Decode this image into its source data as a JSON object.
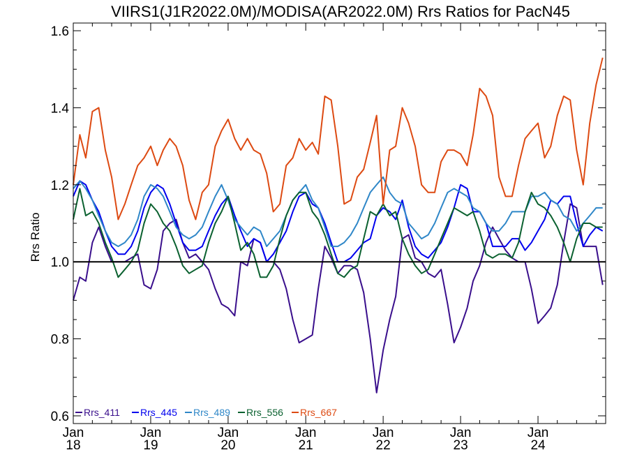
{
  "chart_data": {
    "type": "line",
    "title": "VIIRS1(J1R2022.0M)/MODISA(AR2022.0M)  Rrs Ratios for PacN45",
    "ylabel": "Rrs Ratio",
    "xlabel": "",
    "ylim": [
      0.58,
      1.62
    ],
    "x_range": [
      "2018-01-01",
      "2024-11-15"
    ],
    "y_ticks": [
      "0.6",
      "0.8",
      "1.0",
      "1.2",
      "1.4",
      "1.6"
    ],
    "y_tick_values": [
      0.6,
      0.8,
      1.0,
      1.2,
      1.4,
      1.6
    ],
    "x_ticks": [
      {
        "month": "Jan",
        "year": "18",
        "date": "2018-01-01"
      },
      {
        "month": "Jan",
        "year": "19",
        "date": "2019-01-01"
      },
      {
        "month": "Jan",
        "year": "20",
        "date": "2020-01-01"
      },
      {
        "month": "Jan",
        "year": "21",
        "date": "2021-01-01"
      },
      {
        "month": "Jan",
        "year": "22",
        "date": "2022-01-01"
      },
      {
        "month": "Jan",
        "year": "23",
        "date": "2023-01-01"
      },
      {
        "month": "Jan",
        "year": "24",
        "date": "2024-01-01"
      }
    ],
    "reference_line": 1.0,
    "grid": false,
    "legend_position": "bottom-left",
    "series": [
      {
        "name": "Rrs_411",
        "color": "#3a0f8c",
        "x": [
          "2018-01-01",
          "2018-02-01",
          "2018-03-01",
          "2018-04-01",
          "2018-05-01",
          "2018-06-01",
          "2018-07-01",
          "2018-08-01",
          "2018-09-01",
          "2018-10-01",
          "2018-11-01",
          "2018-12-01",
          "2019-01-01",
          "2019-02-01",
          "2019-03-01",
          "2019-04-01",
          "2019-05-01",
          "2019-06-01",
          "2019-07-01",
          "2019-08-01",
          "2019-09-01",
          "2019-10-01",
          "2019-11-01",
          "2019-12-01",
          "2020-01-01",
          "2020-02-01",
          "2020-03-01",
          "2020-04-01",
          "2020-05-01",
          "2020-06-01",
          "2020-07-01",
          "2020-08-01",
          "2020-09-01",
          "2020-10-01",
          "2020-11-01",
          "2020-12-01",
          "2021-01-01",
          "2021-02-01",
          "2021-03-01",
          "2021-04-01",
          "2021-05-01",
          "2021-06-01",
          "2021-07-01",
          "2021-08-01",
          "2021-09-01",
          "2021-10-01",
          "2021-11-01",
          "2021-12-01",
          "2022-01-01",
          "2022-02-01",
          "2022-03-01",
          "2022-04-01",
          "2022-05-01",
          "2022-06-01",
          "2022-07-01",
          "2022-08-01",
          "2022-09-01",
          "2022-10-01",
          "2022-11-01",
          "2022-12-01",
          "2023-01-01",
          "2023-02-01",
          "2023-03-01",
          "2023-04-01",
          "2023-05-01",
          "2023-06-01",
          "2023-07-01",
          "2023-08-01",
          "2023-09-01",
          "2023-10-01",
          "2023-11-01",
          "2023-12-01",
          "2024-01-01",
          "2024-02-01",
          "2024-03-01",
          "2024-04-01",
          "2024-05-01",
          "2024-06-01",
          "2024-07-01",
          "2024-08-01",
          "2024-09-01",
          "2024-10-01",
          "2024-11-01"
        ],
        "y": [
          0.9,
          0.96,
          0.95,
          1.05,
          1.09,
          1.04,
          1.0,
          1.0,
          1.0,
          1.01,
          1.02,
          0.94,
          0.93,
          0.98,
          1.08,
          1.1,
          1.11,
          1.05,
          1.01,
          1.02,
          1.0,
          0.98,
          0.93,
          0.89,
          0.88,
          0.86,
          1.0,
          0.99,
          1.06,
          1.05,
          1.0,
          1.0,
          0.98,
          0.93,
          0.85,
          0.79,
          0.8,
          0.81,
          0.93,
          1.04,
          1.01,
          0.97,
          0.99,
          0.99,
          0.98,
          0.92,
          0.8,
          0.66,
          0.77,
          0.85,
          0.91,
          1.06,
          1.07,
          1.01,
          1.0,
          0.97,
          0.96,
          0.98,
          0.89,
          0.79,
          0.83,
          0.88,
          0.95,
          0.99,
          1.05,
          1.09,
          1.06,
          1.03,
          1.01,
          1.0,
          1.0,
          0.93,
          0.84,
          0.86,
          0.88,
          0.94,
          1.05,
          1.15,
          1.14,
          1.04,
          1.04,
          1.04,
          0.94
        ]
      },
      {
        "name": "Rrs_445",
        "color": "#0000ee",
        "x": [
          "2018-01-01",
          "2018-02-01",
          "2018-03-01",
          "2018-04-01",
          "2018-05-01",
          "2018-06-01",
          "2018-07-01",
          "2018-08-01",
          "2018-09-01",
          "2018-10-01",
          "2018-11-01",
          "2018-12-01",
          "2019-01-01",
          "2019-02-01",
          "2019-03-01",
          "2019-04-01",
          "2019-05-01",
          "2019-06-01",
          "2019-07-01",
          "2019-08-01",
          "2019-09-01",
          "2019-10-01",
          "2019-11-01",
          "2019-12-01",
          "2020-01-01",
          "2020-02-01",
          "2020-03-01",
          "2020-04-01",
          "2020-05-01",
          "2020-06-01",
          "2020-07-01",
          "2020-08-01",
          "2020-09-01",
          "2020-10-01",
          "2020-11-01",
          "2020-12-01",
          "2021-01-01",
          "2021-02-01",
          "2021-03-01",
          "2021-04-01",
          "2021-05-01",
          "2021-06-01",
          "2021-07-01",
          "2021-08-01",
          "2021-09-01",
          "2021-10-01",
          "2021-11-01",
          "2021-12-01",
          "2022-01-01",
          "2022-02-01",
          "2022-03-01",
          "2022-04-01",
          "2022-05-01",
          "2022-06-01",
          "2022-07-01",
          "2022-08-01",
          "2022-09-01",
          "2022-10-01",
          "2022-11-01",
          "2022-12-01",
          "2023-01-01",
          "2023-02-01",
          "2023-03-01",
          "2023-04-01",
          "2023-05-01",
          "2023-06-01",
          "2023-07-01",
          "2023-08-01",
          "2023-09-01",
          "2023-10-01",
          "2023-11-01",
          "2023-12-01",
          "2024-01-01",
          "2024-02-01",
          "2024-03-01",
          "2024-04-01",
          "2024-05-01",
          "2024-06-01",
          "2024-07-01",
          "2024-08-01",
          "2024-09-01",
          "2024-10-01",
          "2024-11-01"
        ],
        "y": [
          1.17,
          1.21,
          1.2,
          1.16,
          1.13,
          1.08,
          1.04,
          1.02,
          1.02,
          1.04,
          1.08,
          1.14,
          1.18,
          1.2,
          1.19,
          1.15,
          1.1,
          1.05,
          1.03,
          1.03,
          1.04,
          1.08,
          1.12,
          1.15,
          1.17,
          1.12,
          1.08,
          1.04,
          1.06,
          1.05,
          1.0,
          1.02,
          1.05,
          1.08,
          1.13,
          1.17,
          1.18,
          1.15,
          1.14,
          1.1,
          1.05,
          1.0,
          1.0,
          1.01,
          1.03,
          1.05,
          1.06,
          1.12,
          1.14,
          1.13,
          1.11,
          1.16,
          1.09,
          1.04,
          1.02,
          1.01,
          1.03,
          1.05,
          1.09,
          1.14,
          1.2,
          1.19,
          1.13,
          1.13,
          1.1,
          1.04,
          1.04,
          1.04,
          1.06,
          1.06,
          1.03,
          1.05,
          1.08,
          1.11,
          1.16,
          1.15,
          1.17,
          1.17,
          1.1,
          1.04,
          1.07,
          1.09,
          1.08
        ]
      },
      {
        "name": "Rrs_489",
        "color": "#2f87c8",
        "x": [
          "2018-01-01",
          "2018-02-01",
          "2018-03-01",
          "2018-04-01",
          "2018-05-01",
          "2018-06-01",
          "2018-07-01",
          "2018-08-01",
          "2018-09-01",
          "2018-10-01",
          "2018-11-01",
          "2018-12-01",
          "2019-01-01",
          "2019-02-01",
          "2019-03-01",
          "2019-04-01",
          "2019-05-01",
          "2019-06-01",
          "2019-07-01",
          "2019-08-01",
          "2019-09-01",
          "2019-10-01",
          "2019-11-01",
          "2019-12-01",
          "2020-01-01",
          "2020-02-01",
          "2020-03-01",
          "2020-04-01",
          "2020-05-01",
          "2020-06-01",
          "2020-07-01",
          "2020-08-01",
          "2020-09-01",
          "2020-10-01",
          "2020-11-01",
          "2020-12-01",
          "2021-01-01",
          "2021-02-01",
          "2021-03-01",
          "2021-04-01",
          "2021-05-01",
          "2021-06-01",
          "2021-07-01",
          "2021-08-01",
          "2021-09-01",
          "2021-10-01",
          "2021-11-01",
          "2021-12-01",
          "2022-01-01",
          "2022-02-01",
          "2022-03-01",
          "2022-04-01",
          "2022-05-01",
          "2022-06-01",
          "2022-07-01",
          "2022-08-01",
          "2022-09-01",
          "2022-10-01",
          "2022-11-01",
          "2022-12-01",
          "2023-01-01",
          "2023-02-01",
          "2023-03-01",
          "2023-04-01",
          "2023-05-01",
          "2023-06-01",
          "2023-07-01",
          "2023-08-01",
          "2023-09-01",
          "2023-10-01",
          "2023-11-01",
          "2023-12-01",
          "2024-01-01",
          "2024-02-01",
          "2024-03-01",
          "2024-04-01",
          "2024-05-01",
          "2024-06-01",
          "2024-07-01",
          "2024-08-01",
          "2024-09-01",
          "2024-10-01",
          "2024-11-01"
        ],
        "y": [
          1.19,
          1.21,
          1.19,
          1.16,
          1.12,
          1.08,
          1.05,
          1.04,
          1.05,
          1.07,
          1.11,
          1.17,
          1.2,
          1.19,
          1.17,
          1.13,
          1.09,
          1.07,
          1.06,
          1.07,
          1.09,
          1.13,
          1.17,
          1.2,
          1.16,
          1.11,
          1.09,
          1.07,
          1.09,
          1.08,
          1.04,
          1.06,
          1.08,
          1.12,
          1.16,
          1.18,
          1.2,
          1.16,
          1.14,
          1.09,
          1.04,
          1.04,
          1.05,
          1.07,
          1.1,
          1.14,
          1.18,
          1.2,
          1.22,
          1.18,
          1.16,
          1.15,
          1.1,
          1.08,
          1.06,
          1.07,
          1.1,
          1.14,
          1.18,
          1.19,
          1.18,
          1.17,
          1.14,
          1.13,
          1.1,
          1.08,
          1.08,
          1.1,
          1.13,
          1.13,
          1.13,
          1.17,
          1.17,
          1.18,
          1.16,
          1.15,
          1.12,
          1.11,
          1.08,
          1.1,
          1.12,
          1.14,
          1.14
        ]
      },
      {
        "name": "Rrs_556",
        "color": "#0b6130",
        "x": [
          "2018-01-01",
          "2018-02-01",
          "2018-03-01",
          "2018-04-01",
          "2018-05-01",
          "2018-06-01",
          "2018-07-01",
          "2018-08-01",
          "2018-09-01",
          "2018-10-01",
          "2018-11-01",
          "2018-12-01",
          "2019-01-01",
          "2019-02-01",
          "2019-03-01",
          "2019-04-01",
          "2019-05-01",
          "2019-06-01",
          "2019-07-01",
          "2019-08-01",
          "2019-09-01",
          "2019-10-01",
          "2019-11-01",
          "2019-12-01",
          "2020-01-01",
          "2020-02-01",
          "2020-03-01",
          "2020-04-01",
          "2020-05-01",
          "2020-06-01",
          "2020-07-01",
          "2020-08-01",
          "2020-09-01",
          "2020-10-01",
          "2020-11-01",
          "2020-12-01",
          "2021-01-01",
          "2021-02-01",
          "2021-03-01",
          "2021-04-01",
          "2021-05-01",
          "2021-06-01",
          "2021-07-01",
          "2021-08-01",
          "2021-09-01",
          "2021-10-01",
          "2021-11-01",
          "2021-12-01",
          "2022-01-01",
          "2022-02-01",
          "2022-03-01",
          "2022-04-01",
          "2022-05-01",
          "2022-06-01",
          "2022-07-01",
          "2022-08-01",
          "2022-09-01",
          "2022-10-01",
          "2022-11-01",
          "2022-12-01",
          "2023-01-01",
          "2023-02-01",
          "2023-03-01",
          "2023-04-01",
          "2023-05-01",
          "2023-06-01",
          "2023-07-01",
          "2023-08-01",
          "2023-09-01",
          "2023-10-01",
          "2023-11-01",
          "2023-12-01",
          "2024-01-01",
          "2024-02-01",
          "2024-03-01",
          "2024-04-01",
          "2024-05-01",
          "2024-06-01",
          "2024-07-01",
          "2024-08-01",
          "2024-09-01",
          "2024-10-01",
          "2024-11-01"
        ],
        "y": [
          1.11,
          1.19,
          1.12,
          1.13,
          1.1,
          1.05,
          1.01,
          0.96,
          0.98,
          1.0,
          1.03,
          1.1,
          1.15,
          1.13,
          1.1,
          1.08,
          1.04,
          0.99,
          0.97,
          0.98,
          0.99,
          1.05,
          1.1,
          1.13,
          1.17,
          1.1,
          1.03,
          1.05,
          1.02,
          0.96,
          0.96,
          0.99,
          1.06,
          1.12,
          1.16,
          1.18,
          1.18,
          1.13,
          1.11,
          1.07,
          1.02,
          0.97,
          0.96,
          0.98,
          0.99,
          1.06,
          1.13,
          1.12,
          1.15,
          1.12,
          1.13,
          1.06,
          1.02,
          0.99,
          0.97,
          0.98,
          1.02,
          1.06,
          1.1,
          1.14,
          1.13,
          1.12,
          1.13,
          1.08,
          1.02,
          1.01,
          1.02,
          1.02,
          1.01,
          1.05,
          1.13,
          1.18,
          1.15,
          1.14,
          1.12,
          1.09,
          1.05,
          1.0,
          1.06,
          1.1,
          1.1,
          1.09,
          1.09
        ]
      },
      {
        "name": "Rrs_667",
        "color": "#dd4a12",
        "x": [
          "2018-01-01",
          "2018-02-01",
          "2018-03-01",
          "2018-04-01",
          "2018-05-01",
          "2018-06-01",
          "2018-07-01",
          "2018-08-01",
          "2018-09-01",
          "2018-10-01",
          "2018-11-01",
          "2018-12-01",
          "2019-01-01",
          "2019-02-01",
          "2019-03-01",
          "2019-04-01",
          "2019-05-01",
          "2019-06-01",
          "2019-07-01",
          "2019-08-01",
          "2019-09-01",
          "2019-10-01",
          "2019-11-01",
          "2019-12-01",
          "2020-01-01",
          "2020-02-01",
          "2020-03-01",
          "2020-04-01",
          "2020-05-01",
          "2020-06-01",
          "2020-07-01",
          "2020-08-01",
          "2020-09-01",
          "2020-10-01",
          "2020-11-01",
          "2020-12-01",
          "2021-01-01",
          "2021-02-01",
          "2021-03-01",
          "2021-04-01",
          "2021-05-01",
          "2021-06-01",
          "2021-07-01",
          "2021-08-01",
          "2021-09-01",
          "2021-10-01",
          "2021-11-01",
          "2021-12-01",
          "2022-01-01",
          "2022-02-01",
          "2022-03-01",
          "2022-04-01",
          "2022-05-01",
          "2022-06-01",
          "2022-07-01",
          "2022-08-01",
          "2022-09-01",
          "2022-10-01",
          "2022-11-01",
          "2022-12-01",
          "2023-01-01",
          "2023-02-01",
          "2023-03-01",
          "2023-04-01",
          "2023-05-01",
          "2023-06-01",
          "2023-07-01",
          "2023-08-01",
          "2023-09-01",
          "2023-10-01",
          "2023-11-01",
          "2023-12-01",
          "2024-01-01",
          "2024-02-01",
          "2024-03-01",
          "2024-04-01",
          "2024-05-01",
          "2024-06-01",
          "2024-07-01",
          "2024-08-01",
          "2024-09-01",
          "2024-10-01",
          "2024-11-01"
        ],
        "y": [
          1.2,
          1.33,
          1.27,
          1.39,
          1.4,
          1.29,
          1.22,
          1.11,
          1.15,
          1.2,
          1.25,
          1.27,
          1.3,
          1.25,
          1.29,
          1.32,
          1.3,
          1.25,
          1.16,
          1.11,
          1.18,
          1.2,
          1.3,
          1.34,
          1.37,
          1.32,
          1.29,
          1.32,
          1.29,
          1.28,
          1.23,
          1.13,
          1.15,
          1.25,
          1.27,
          1.32,
          1.29,
          1.31,
          1.28,
          1.43,
          1.42,
          1.3,
          1.15,
          1.16,
          1.22,
          1.24,
          1.31,
          1.38,
          1.15,
          1.29,
          1.3,
          1.4,
          1.36,
          1.3,
          1.2,
          1.18,
          1.18,
          1.26,
          1.29,
          1.29,
          1.28,
          1.25,
          1.33,
          1.45,
          1.43,
          1.38,
          1.22,
          1.17,
          1.17,
          1.25,
          1.32,
          1.34,
          1.36,
          1.27,
          1.3,
          1.38,
          1.43,
          1.42,
          1.29,
          1.2,
          1.36,
          1.46,
          1.53
        ]
      }
    ]
  }
}
